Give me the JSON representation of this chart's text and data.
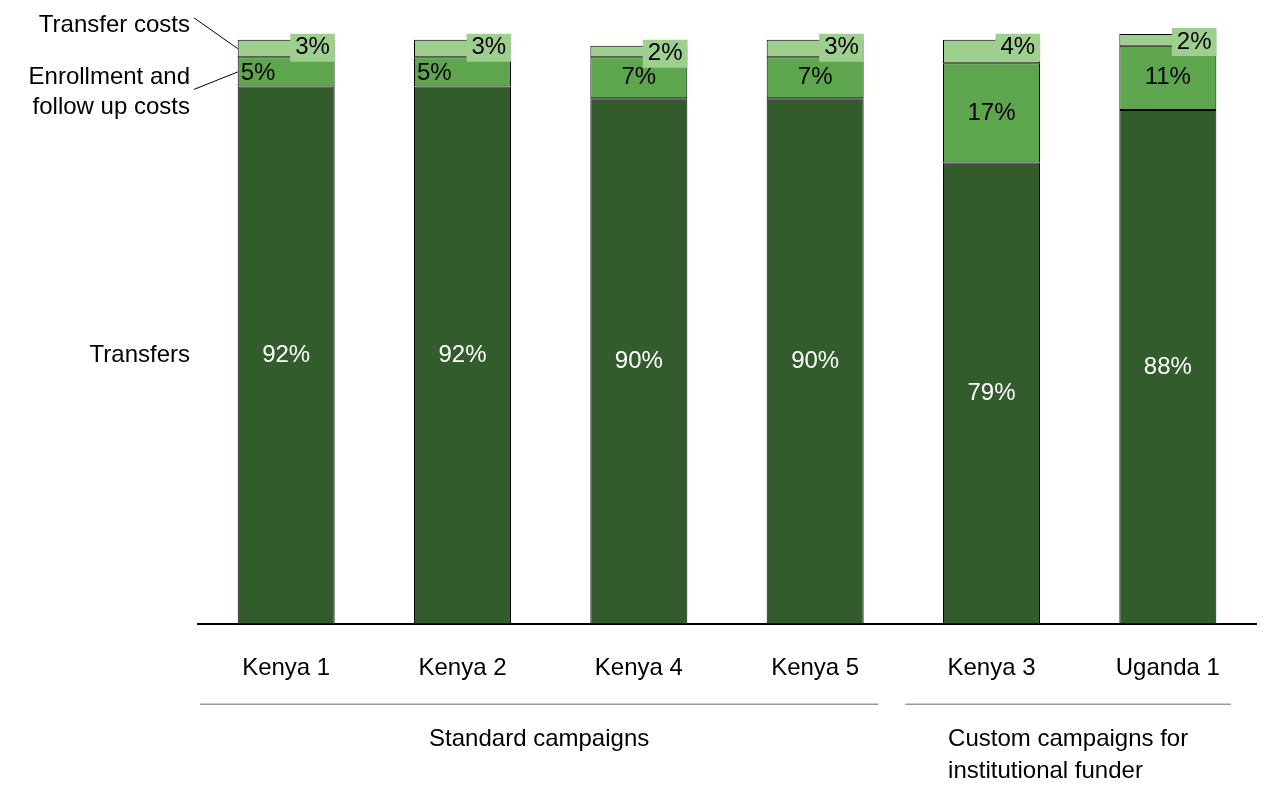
{
  "chart_data": {
    "type": "bar",
    "stacked": true,
    "legend": "left",
    "grid": false,
    "categories": [
      "Kenya 1",
      "Kenya 2",
      "Kenya 4",
      "Kenya 5",
      "Kenya 3",
      "Uganda 1"
    ],
    "series": [
      {
        "name": "Transfers",
        "color": "#335c2c",
        "values": [
          92,
          92,
          90,
          90,
          79,
          88
        ],
        "value_labels": [
          "92%",
          "92%",
          "90%",
          "90%",
          "79%",
          "88%"
        ]
      },
      {
        "name": "Enrollment and follow up costs",
        "color": "#5ea64e",
        "values": [
          5,
          5,
          7,
          7,
          17,
          11
        ],
        "value_labels": [
          "5%",
          "5%",
          "7%",
          "7%",
          "17%",
          "11%"
        ]
      },
      {
        "name": "Transfer costs",
        "color": "#9fcf8e",
        "values": [
          3,
          3,
          2,
          3,
          4,
          2
        ],
        "value_labels": [
          "3%",
          "3%",
          "2%",
          "3%",
          "4%",
          "2%"
        ]
      }
    ],
    "annotations": [
      "Standard campaigns",
      "Custom campaigns for institutional funder"
    ]
  }
}
